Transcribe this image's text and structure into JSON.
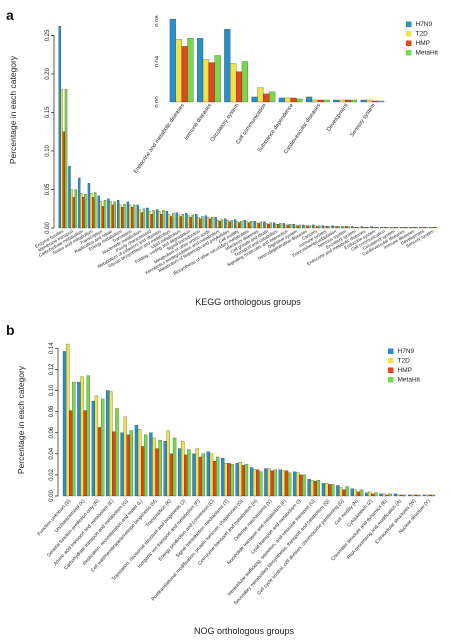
{
  "series_colors": [
    "#2a8fc8",
    "#f2e24a",
    "#e0461f",
    "#79d84a"
  ],
  "chart_data": [
    {
      "panel_label": "a",
      "type": "bar",
      "ylabel": "Percentage in each category",
      "xlabel": "KEGG orthologous groups",
      "ylim": [
        0,
        0.27
      ],
      "yticks": [
        0,
        0.05,
        0.1,
        0.15,
        0.2,
        0.25
      ],
      "ytick_labels": [
        "0.00",
        "0.05",
        "0.10",
        "0.15",
        "0.20",
        "0.25"
      ],
      "legend": [
        "H7N9",
        "T2D",
        "HMP",
        "MetaHit"
      ],
      "legend_position": "top-right",
      "categories": [
        "Enzyme families",
        "Membrane transport",
        "Carbohydrate metabolism",
        "Amino acid metabolism",
        "Transcription",
        "Replication and repair",
        "Energy metabolism",
        "Translation",
        "Nucleotide metabolism",
        "Poorly characterized",
        "Metabolism of cofactors and vitamins",
        "Glycan biosynthesis and metabolism",
        "Lipid metabolism",
        "Folding, sorting and degradation",
        "Signal transduction",
        "Metabolism of other amino acids",
        "Xenobiotics biodegradation and metabolism",
        "Metabolism of terpenoids and polyketides",
        "Cell motility",
        "Biosynthesis of other secondary metabolites",
        "Infectious diseases",
        "Cell growth and death",
        "Transport and catabolism",
        "Signaling molecules and interaction",
        "Digestive system",
        "Neurodegenerative diseases",
        "Cancers",
        "Immune system",
        "Environmental adaptation",
        "Nervous system",
        "Excretory system",
        "Endocrine and metabolic diseases",
        "Endocrine system",
        "Cell communication",
        "Circulatory system",
        "Cardiovascular diseases",
        "Immune diseases",
        "Development",
        "Sensory system"
      ],
      "label_step": 1,
      "series": [
        {
          "name": "H7N9",
          "values": [
            0.262,
            0.08,
            0.065,
            0.058,
            0.042,
            0.038,
            0.036,
            0.034,
            0.03,
            0.026,
            0.024,
            0.022,
            0.02,
            0.019,
            0.018,
            0.016,
            0.014,
            0.012,
            0.011,
            0.01,
            0.009,
            0.008,
            0.007,
            0.006,
            0.005,
            0.004,
            0.004,
            0.003,
            0.003,
            0.002,
            0.002,
            0.002,
            0.002,
            0.001,
            0.001,
            0.001,
            0.001,
            0.001,
            0.001
          ]
        },
        {
          "name": "T2D",
          "values": [
            0.18,
            0.05,
            0.045,
            0.045,
            0.035,
            0.035,
            0.03,
            0.03,
            0.024,
            0.022,
            0.022,
            0.018,
            0.017,
            0.016,
            0.014,
            0.014,
            0.01,
            0.01,
            0.008,
            0.008,
            0.007,
            0.006,
            0.005,
            0.004,
            0.004,
            0.003,
            0.003,
            0.002,
            0.002,
            0.002,
            0.001,
            0.001,
            0.001,
            0.001,
            0.001,
            0.001,
            0.001,
            0.001,
            0.001
          ]
        },
        {
          "name": "HMP",
          "values": [
            0.125,
            0.04,
            0.04,
            0.04,
            0.028,
            0.03,
            0.027,
            0.027,
            0.02,
            0.018,
            0.018,
            0.015,
            0.015,
            0.014,
            0.012,
            0.012,
            0.009,
            0.008,
            0.007,
            0.007,
            0.006,
            0.005,
            0.005,
            0.004,
            0.003,
            0.003,
            0.002,
            0.002,
            0.002,
            0.002,
            0.001,
            0.001,
            0.001,
            0.001,
            0.001,
            0.001,
            0.001,
            0.001,
            0.001
          ]
        },
        {
          "name": "MetaHit",
          "values": [
            0.18,
            0.05,
            0.044,
            0.046,
            0.036,
            0.034,
            0.031,
            0.03,
            0.025,
            0.023,
            0.023,
            0.019,
            0.018,
            0.017,
            0.015,
            0.014,
            0.011,
            0.01,
            0.009,
            0.009,
            0.008,
            0.007,
            0.006,
            0.005,
            0.004,
            0.003,
            0.003,
            0.002,
            0.002,
            0.002,
            0.001,
            0.001,
            0.001,
            0.001,
            0.001,
            0.001,
            0.001,
            0.001,
            0.001
          ]
        }
      ]
    },
    {
      "panel_label": "",
      "type": "bar",
      "inset": true,
      "ylim": [
        0,
        0.085
      ],
      "yticks": [
        0,
        0.04,
        0.08
      ],
      "ytick_labels": [
        "0.00",
        "0.04",
        "0.08"
      ],
      "legend": [
        "H7N9",
        "T2D",
        "HMP",
        "MetaHit"
      ],
      "legend_position": "top-right",
      "categories": [
        "Endocrine and metabolic diseases",
        "Immune diseases",
        "Circulatory system",
        "Cell communication",
        "Substance dependence",
        "Cardiovascular diseases",
        "Development",
        "Sensory system"
      ],
      "series": [
        {
          "name": "H7N9",
          "values": [
            0.082,
            0.063,
            0.072,
            0.005,
            0.004,
            0.005,
            0.002,
            0.002
          ]
        },
        {
          "name": "T2D",
          "values": [
            0.062,
            0.042,
            0.038,
            0.014,
            0.004,
            0.002,
            0.002,
            0.002
          ]
        },
        {
          "name": "HMP",
          "values": [
            0.055,
            0.039,
            0.03,
            0.008,
            0.004,
            0.002,
            0.002,
            0.001
          ]
        },
        {
          "name": "MetaHit",
          "values": [
            0.063,
            0.046,
            0.04,
            0.01,
            0.003,
            0.002,
            0.002,
            0.001
          ]
        }
      ]
    },
    {
      "panel_label": "b",
      "type": "bar",
      "ylabel": "Percentage in each category",
      "xlabel": "NOG orthologous groups",
      "ylim": [
        0,
        0.145
      ],
      "yticks": [
        0,
        0.02,
        0.04,
        0.06,
        0.08,
        0.1,
        0.12,
        0.14
      ],
      "ytick_labels": [
        "0.00",
        "0.02",
        "0.04",
        "0.06",
        "0.08",
        "0.10",
        "0.12",
        "0.14"
      ],
      "legend": [
        "H7N9",
        "T2D",
        "HMP",
        "MetaHit"
      ],
      "legend_position": "top-right",
      "categories": [
        "Function unknown (S)",
        "Uncharacterized (X)",
        "General function prediction only (R)",
        "Amino acid transport and metabolism (E)",
        "Carbohydrate transport and metabolism (G)",
        "Replication, recombination and repair (L)",
        "Cell wall/membrane/envelope biogenesis (M)",
        "Transcription (K)",
        "Translation, ribosomal structure and biogenesis (J)",
        "Inorganic ion transport and metabolism (P)",
        "Energy production and conversion (C)",
        "Signal transduction mechanisms (T)",
        "Posttranslational modification, protein turnover, chaperones (O)",
        "Coenzyme transport and metabolism (H)",
        "Defense mechanisms (V)",
        "Nucleotide transport and metabolism (F)",
        "Lipid transport and metabolism (I)",
        "Intracellular trafficking, secretion, and vesicular transport (U)",
        "Secondary metabolites biosynthesis, transport and catabolism (Q)",
        "Cell cycle control, cell division, chromosome partitioning (D)",
        "Cell motility (N)",
        "Cytoskeleton (Z)",
        "Chromatin structure and dynamics (B)",
        "RNA processing and modification (A)",
        "Extracellular structures (W)",
        "Nuclear structure (Y)"
      ],
      "label_step": 1,
      "series": [
        {
          "name": "H7N9",
          "values": [
            0.137,
            0.108,
            0.09,
            0.1,
            0.06,
            0.067,
            0.06,
            0.052,
            0.045,
            0.04,
            0.042,
            0.036,
            0.031,
            0.027,
            0.026,
            0.025,
            0.023,
            0.016,
            0.012,
            0.01,
            0.007,
            0.003,
            0.002,
            0.002,
            0.001,
            0.001
          ]
        },
        {
          "name": "T2D",
          "values": [
            0.144,
            0.113,
            0.095,
            0.099,
            0.075,
            0.063,
            0.055,
            0.062,
            0.052,
            0.045,
            0.04,
            0.031,
            0.032,
            0.025,
            0.026,
            0.024,
            0.022,
            0.015,
            0.012,
            0.008,
            0.006,
            0.004,
            0.002,
            0.001,
            0.001,
            0.001
          ]
        },
        {
          "name": "HMP",
          "values": [
            0.081,
            0.081,
            0.065,
            0.061,
            0.058,
            0.047,
            0.045,
            0.04,
            0.039,
            0.037,
            0.033,
            0.031,
            0.029,
            0.025,
            0.024,
            0.024,
            0.02,
            0.014,
            0.011,
            0.006,
            0.004,
            0.002,
            0.001,
            0.001,
            0.001,
            0.001
          ]
        },
        {
          "name": "MetaHit",
          "values": [
            0.108,
            0.114,
            0.092,
            0.083,
            0.062,
            0.058,
            0.053,
            0.055,
            0.044,
            0.04,
            0.037,
            0.03,
            0.03,
            0.023,
            0.025,
            0.022,
            0.02,
            0.015,
            0.011,
            0.009,
            0.006,
            0.003,
            0.002,
            0.001,
            0.001,
            0.001
          ]
        }
      ]
    }
  ]
}
